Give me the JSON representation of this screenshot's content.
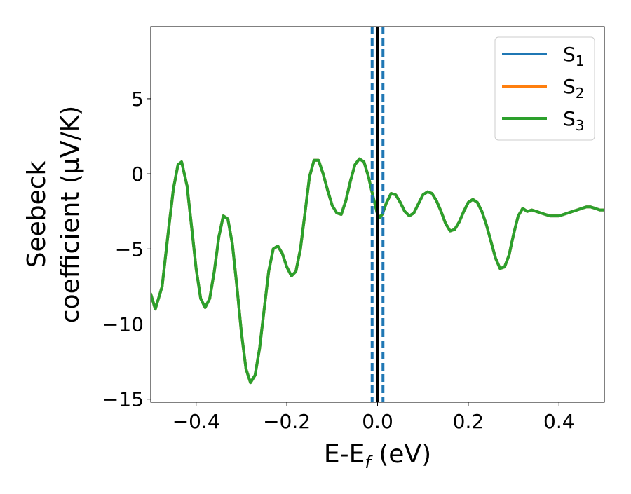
{
  "chart_data": {
    "type": "line",
    "title": "",
    "xlabel": "E-E",
    "xlabel_sub": "f",
    "xlabel_unit": " (eV)",
    "ylabel_line1": "Seebeck",
    "ylabel_line2": "coefficient  (μV/K)",
    "xlim": [
      -0.5,
      0.5
    ],
    "ylim": [
      -15.2,
      9.8
    ],
    "xticks": [
      -0.4,
      -0.2,
      0.0,
      0.2,
      0.4
    ],
    "xtick_labels": [
      "−0.4",
      "−0.2",
      "0.0",
      "0.2",
      "0.4"
    ],
    "yticks": [
      -15,
      -10,
      -5,
      0,
      5
    ],
    "ytick_labels": [
      "−15",
      "−10",
      "−5",
      "0",
      "5"
    ],
    "grid": false,
    "legend_position": "top-right",
    "vlines": [
      {
        "x": 0.0,
        "style": "solid",
        "color": "#000000"
      },
      {
        "x": -0.012,
        "style": "dashed",
        "color": "#1f77b4"
      },
      {
        "x": 0.012,
        "style": "dashed",
        "color": "#1f77b4"
      }
    ],
    "x": [
      -0.5,
      -0.49,
      -0.475,
      -0.46,
      -0.45,
      -0.44,
      -0.432,
      -0.42,
      -0.41,
      -0.4,
      -0.39,
      -0.38,
      -0.37,
      -0.36,
      -0.35,
      -0.34,
      -0.33,
      -0.32,
      -0.31,
      -0.3,
      -0.29,
      -0.28,
      -0.27,
      -0.26,
      -0.25,
      -0.24,
      -0.23,
      -0.22,
      -0.21,
      -0.2,
      -0.19,
      -0.18,
      -0.17,
      -0.16,
      -0.15,
      -0.14,
      -0.13,
      -0.12,
      -0.11,
      -0.1,
      -0.09,
      -0.08,
      -0.07,
      -0.06,
      -0.05,
      -0.04,
      -0.03,
      -0.02,
      -0.01,
      0.0,
      0.005,
      0.01,
      0.02,
      0.03,
      0.04,
      0.05,
      0.06,
      0.07,
      0.08,
      0.09,
      0.1,
      0.11,
      0.12,
      0.13,
      0.14,
      0.15,
      0.16,
      0.17,
      0.18,
      0.19,
      0.2,
      0.21,
      0.22,
      0.23,
      0.24,
      0.25,
      0.26,
      0.27,
      0.28,
      0.29,
      0.3,
      0.31,
      0.32,
      0.33,
      0.34,
      0.35,
      0.36,
      0.37,
      0.38,
      0.39,
      0.4,
      0.41,
      0.42,
      0.43,
      0.44,
      0.45,
      0.46,
      0.47,
      0.48,
      0.49,
      0.5
    ],
    "series": [
      {
        "name": "S",
        "name_sub": "1",
        "color": "#1f77b4"
      },
      {
        "name": "S",
        "name_sub": "2",
        "color": "#ff7f0e"
      },
      {
        "name": "S",
        "name_sub": "3",
        "color": "#2ca02c"
      }
    ],
    "y": [
      -8.0,
      -9.0,
      -7.5,
      -3.5,
      -1.0,
      0.6,
      0.8,
      -0.8,
      -3.5,
      -6.3,
      -8.3,
      -8.9,
      -8.3,
      -6.5,
      -4.2,
      -2.8,
      -3.0,
      -4.7,
      -7.5,
      -10.6,
      -13.0,
      -13.9,
      -13.4,
      -11.6,
      -9.0,
      -6.5,
      -5.0,
      -4.8,
      -5.3,
      -6.2,
      -6.8,
      -6.5,
      -5.0,
      -2.6,
      -0.2,
      0.9,
      0.9,
      0.0,
      -1.1,
      -2.1,
      -2.6,
      -2.7,
      -1.8,
      -0.5,
      0.6,
      1.0,
      0.8,
      -0.2,
      -1.5,
      -2.7,
      -2.9,
      -2.7,
      -1.9,
      -1.3,
      -1.4,
      -1.9,
      -2.5,
      -2.8,
      -2.6,
      -2.0,
      -1.4,
      -1.2,
      -1.3,
      -1.8,
      -2.5,
      -3.3,
      -3.8,
      -3.7,
      -3.2,
      -2.5,
      -1.9,
      -1.7,
      -1.9,
      -2.5,
      -3.4,
      -4.5,
      -5.6,
      -6.3,
      -6.2,
      -5.4,
      -4.0,
      -2.8,
      -2.3,
      -2.5,
      -2.4,
      -2.5,
      -2.6,
      -2.7,
      -2.8,
      -2.8,
      -2.8,
      -2.7,
      -2.6,
      -2.5,
      -2.4,
      -2.3,
      -2.2,
      -2.2,
      -2.3,
      -2.4,
      -2.4
    ]
  }
}
